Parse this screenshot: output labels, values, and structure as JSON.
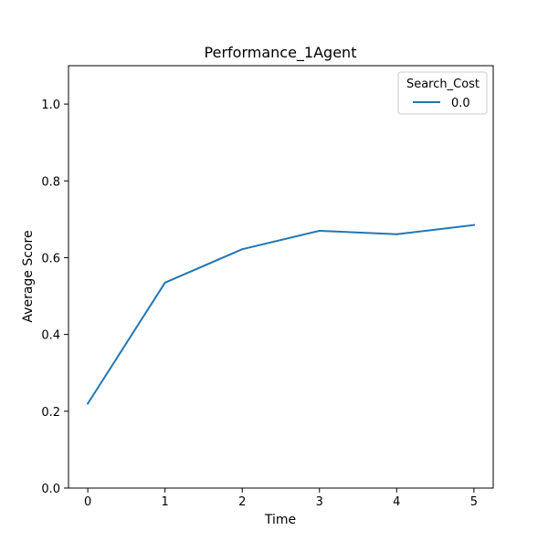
{
  "chart_data": {
    "type": "line",
    "title": "Performance_1Agent",
    "xlabel": "Time",
    "ylabel": "Average Score",
    "x": [
      0,
      1,
      2,
      3,
      4,
      5
    ],
    "series": [
      {
        "name": "0.0",
        "values": [
          0.22,
          0.535,
          0.622,
          0.67,
          0.661,
          0.685
        ],
        "color": "#1f77b4"
      }
    ],
    "xlim": [
      -0.25,
      5.25
    ],
    "ylim": [
      0.0,
      1.1
    ],
    "xticks": [
      0,
      1,
      2,
      3,
      4,
      5
    ],
    "yticks": [
      0.0,
      0.2,
      0.4,
      0.6,
      0.8,
      1.0
    ],
    "xtick_labels": [
      "0",
      "1",
      "2",
      "3",
      "4",
      "5"
    ],
    "ytick_labels": [
      "0.0",
      "0.2",
      "0.4",
      "0.6",
      "0.8",
      "1.0"
    ],
    "grid": false,
    "legend": {
      "title": "Search_Cost",
      "placement": "top-right"
    }
  }
}
